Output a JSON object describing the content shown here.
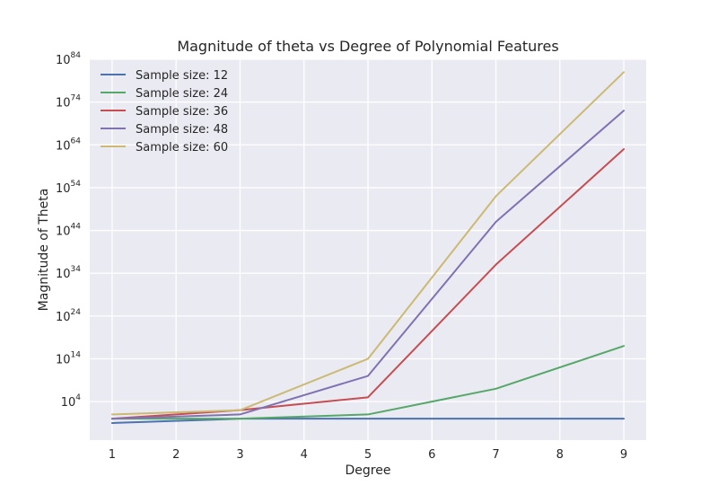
{
  "chart_data": {
    "type": "line",
    "title": "Magnitude of theta vs Degree of Polynomial Features",
    "xlabel": "Degree",
    "ylabel": "Magnitude of Theta",
    "xlim": [
      0.65,
      9.35
    ],
    "yscale": "log",
    "ylim_log10": [
      -5,
      84
    ],
    "x_ticks": [
      "1",
      "2",
      "3",
      "4",
      "5",
      "6",
      "7",
      "8",
      "9"
    ],
    "y_ticks": [
      {
        "base": "10",
        "exp": "4"
      },
      {
        "base": "10",
        "exp": "14"
      },
      {
        "base": "10",
        "exp": "24"
      },
      {
        "base": "10",
        "exp": "34"
      },
      {
        "base": "10",
        "exp": "44"
      },
      {
        "base": "10",
        "exp": "54"
      },
      {
        "base": "10",
        "exp": "64"
      },
      {
        "base": "10",
        "exp": "74"
      },
      {
        "base": "10",
        "exp": "84"
      }
    ],
    "grid": true,
    "background": "#eaeaf2",
    "legend": "top-left",
    "x": [
      1,
      3,
      5,
      7,
      9
    ],
    "series": [
      {
        "name": "Sample size: 12",
        "color": "#4c72b0",
        "y": [
          0.1,
          1.0,
          1.0,
          1.0,
          1.0
        ]
      },
      {
        "name": "Sample size: 24",
        "color": "#55a868",
        "y": [
          1.0,
          1.0,
          10.0,
          10000000.0,
          1e+17
        ]
      },
      {
        "name": "Sample size: 36",
        "color": "#c44e52",
        "y": [
          1.0,
          100.0,
          100000.0,
          1e+36,
          1e+63
        ]
      },
      {
        "name": "Sample size: 48",
        "color": "#8172b2",
        "y": [
          1.0,
          10.0,
          10000000000.0,
          1e+46,
          1e+72
        ]
      },
      {
        "name": "Sample size: 60",
        "color": "#ccb974",
        "y": [
          10.0,
          100.0,
          100000000000000.0,
          1e+52,
          1e+81
        ]
      }
    ]
  }
}
